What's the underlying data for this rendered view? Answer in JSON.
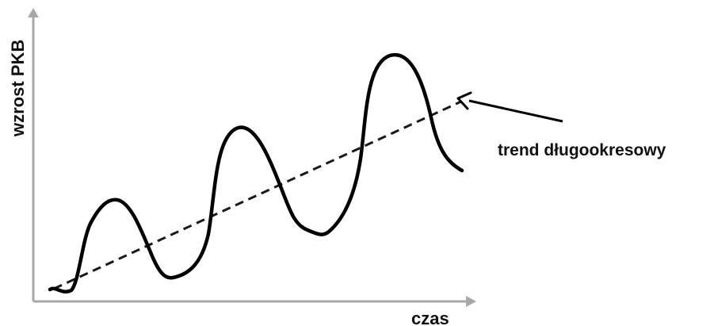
{
  "labels": {
    "y_axis": "wzrost PKB",
    "x_axis": "czas",
    "annotation": "trend długookresowy"
  },
  "colors": {
    "curve": "#000000",
    "trend": "#1a1a1a",
    "axis": "#a8a8a8",
    "text": "#111111"
  }
}
